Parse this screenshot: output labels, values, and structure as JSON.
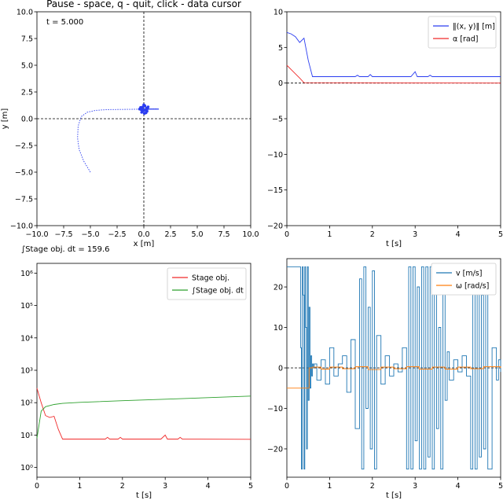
{
  "window": {
    "header": "Pause - space, q - quit, click - data cursor"
  },
  "colors": {
    "blue": "#2a3cf0",
    "red": "#f02a2a",
    "green": "#2ca02c",
    "tab_blue": "#1f77b4",
    "tab_orange": "#ff7f0e",
    "axis": "#000000"
  },
  "chart_data": [
    {
      "id": "trajectory",
      "type": "scatter",
      "annotation": "t = 5.000",
      "xlabel": "x [m]",
      "ylabel": "y [m]",
      "xlim": [
        -10,
        10
      ],
      "ylim": [
        -10,
        10
      ],
      "xticks": [
        "−10.0",
        "−7.5",
        "−5.0",
        "−2.5",
        "0.0",
        "2.5",
        "5.0",
        "7.5",
        "10.0"
      ],
      "yticks": [
        "−10.0",
        "−7.5",
        "−5.0",
        "−2.5",
        "0.0",
        "2.5",
        "5.0",
        "7.5",
        "10.0"
      ],
      "crosshair": {
        "x": 0,
        "y": 0
      },
      "series": [
        {
          "style": "dotted",
          "points": [
            [
              -5,
              -5
            ],
            [
              -5.6,
              -4
            ],
            [
              -6.05,
              -2.9
            ],
            [
              -6.2,
              -1.8
            ],
            [
              -6.15,
              -0.7
            ],
            [
              -5.85,
              0.2
            ],
            [
              -5.3,
              0.6
            ],
            [
              -4.5,
              0.78
            ],
            [
              -3.4,
              0.85
            ],
            [
              -2.2,
              0.87
            ],
            [
              -1,
              0.88
            ],
            [
              0.3,
              0.9
            ],
            [
              1.2,
              0.92
            ]
          ]
        },
        {
          "style": "cluster",
          "points": [
            [
              -0.4,
              0.9
            ],
            [
              -0.2,
              0.6
            ],
            [
              0.1,
              1.2
            ],
            [
              0.3,
              0.7
            ],
            [
              -0.1,
              1.1
            ],
            [
              0.25,
              1.0
            ],
            [
              0.05,
              0.5
            ],
            [
              -0.3,
              1.05
            ],
            [
              0.15,
              0.8
            ],
            [
              0.35,
              0.95
            ],
            [
              -0.05,
              0.75
            ],
            [
              0.0,
              1.3
            ],
            [
              -0.25,
              0.85
            ],
            [
              0.2,
              0.55
            ],
            [
              0.4,
              1.1
            ],
            [
              -0.15,
              0.95
            ]
          ]
        }
      ]
    },
    {
      "id": "norm-alpha",
      "type": "line",
      "xlabel": "t [s]",
      "ylabel": "",
      "xlim": [
        0,
        5
      ],
      "ylim": [
        -20,
        10
      ],
      "xticks": [
        "0",
        "1",
        "2",
        "3",
        "4",
        "5"
      ],
      "yticks": [
        "−20",
        "−15",
        "−10",
        "−5",
        "0",
        "5",
        "10"
      ],
      "zero_line": true,
      "legend_placement": "top-right",
      "series": [
        {
          "name": "‖(x, y)‖ [m]",
          "x": [
            0,
            0.1,
            0.2,
            0.3,
            0.4,
            0.5,
            0.6,
            1.6,
            1.65,
            1.7,
            1.9,
            1.95,
            2.0,
            2.9,
            3.0,
            3.05,
            3.3,
            3.35,
            3.4,
            5.0
          ],
          "y": [
            7.1,
            6.9,
            6.5,
            5.7,
            6.3,
            3.2,
            0.9,
            0.9,
            1.1,
            0.9,
            0.9,
            1.2,
            0.9,
            0.9,
            1.6,
            0.9,
            0.9,
            1.1,
            0.9,
            0.9
          ]
        },
        {
          "name": "α [rad]",
          "x": [
            0,
            0.1,
            0.2,
            0.3,
            0.4,
            5.0
          ],
          "y": [
            2.5,
            1.9,
            1.3,
            0.7,
            0.05,
            0.0
          ]
        }
      ]
    },
    {
      "id": "stage-cost",
      "type": "line",
      "annotation": "∫Stage obj. dt = 159.6",
      "xlabel": "t [s]",
      "ylabel": "",
      "log_scale": true,
      "xlim": [
        0,
        5
      ],
      "ylim": [
        0.5,
        2000000
      ],
      "xticks": [
        "0",
        "1",
        "2",
        "3",
        "4",
        "5"
      ],
      "yticks": [
        "10⁰",
        "10¹",
        "10²",
        "10³",
        "10⁴",
        "10⁵",
        "10⁶"
      ],
      "legend_placement": "top-right",
      "series": [
        {
          "name": "Stage obj.",
          "x": [
            0,
            0.1,
            0.2,
            0.3,
            0.4,
            0.5,
            0.6,
            1.6,
            1.65,
            1.7,
            1.9,
            1.95,
            2.0,
            2.9,
            3.0,
            3.05,
            3.3,
            3.35,
            3.4,
            5.0
          ],
          "y": [
            280,
            100,
            40,
            35,
            38,
            15,
            7.5,
            7.5,
            8.5,
            7.5,
            7.5,
            8.5,
            7.5,
            7.5,
            10,
            7.5,
            7.5,
            8.5,
            7.5,
            7.4
          ]
        },
        {
          "name": "∫Stage obj. dt",
          "x": [
            0,
            0.1,
            0.2,
            0.4,
            0.6,
            1,
            2,
            3,
            4,
            5
          ],
          "y": [
            8,
            55,
            75,
            88,
            95,
            102,
            115,
            128,
            143,
            159.6
          ]
        }
      ]
    },
    {
      "id": "controls",
      "type": "line",
      "xlabel": "t [s]",
      "ylabel": "",
      "xlim": [
        0,
        5
      ],
      "ylim": [
        -27,
        27
      ],
      "xticks": [
        "0",
        "1",
        "2",
        "3",
        "4",
        "5"
      ],
      "yticks": [
        "−20",
        "−10",
        "0",
        "10",
        "20"
      ],
      "zero_line": true,
      "legend_placement": "top-right",
      "series": [
        {
          "name": "v [m/s]",
          "x": [
            0,
            0.05,
            0.3,
            0.32,
            0.34,
            0.36,
            0.38,
            0.4,
            0.42,
            0.44,
            0.46,
            0.48,
            0.5,
            0.52,
            0.54,
            0.56,
            0.58,
            0.6,
            0.62,
            0.64,
            0.7,
            0.8,
            0.9,
            1.0,
            1.1,
            1.2,
            1.3,
            1.4,
            1.5,
            1.6,
            1.7,
            1.75,
            1.8,
            1.85,
            1.9,
            1.95,
            2.0,
            2.05,
            2.1,
            2.2,
            2.3,
            2.4,
            2.5,
            2.6,
            2.7,
            2.8,
            2.85,
            2.9,
            2.95,
            3.0,
            3.05,
            3.1,
            3.15,
            3.2,
            3.25,
            3.3,
            3.35,
            3.4,
            3.45,
            3.5,
            3.55,
            3.6,
            3.65,
            3.7,
            3.75,
            3.8,
            3.9,
            4.0,
            4.1,
            4.2,
            4.3,
            4.35,
            4.4,
            4.45,
            4.5,
            4.55,
            4.6,
            4.65,
            4.7,
            4.8,
            4.9,
            4.95,
            5.0
          ],
          "y": [
            25,
            25,
            25,
            5,
            -25,
            25,
            18,
            -25,
            25,
            10,
            -20,
            25,
            -8,
            15,
            -5,
            3,
            -2,
            1,
            0,
            1,
            -3,
            2,
            -4,
            5,
            -2,
            1,
            3,
            -6,
            7,
            -15,
            22,
            -25,
            25,
            -10,
            15,
            -20,
            24,
            -25,
            8,
            -4,
            3,
            -2,
            1,
            -1,
            5,
            -25,
            25,
            -25,
            25,
            -18,
            20,
            -25,
            25,
            -25,
            25,
            -22,
            25,
            -25,
            22,
            -15,
            10,
            -25,
            25,
            -8,
            4,
            -3,
            2,
            -1,
            3,
            -2,
            -25,
            25,
            -25,
            25,
            -22,
            18,
            -20,
            25,
            -25,
            5,
            -3,
            2,
            -1
          ]
        },
        {
          "name": "ω [rad/s]",
          "x": [
            0,
            0.5,
            0.52,
            0.6,
            0.8,
            1.0,
            1.3,
            1.6,
            1.9,
            2.2,
            2.5,
            2.8,
            3.1,
            3.4,
            3.7,
            4.0,
            4.3,
            4.6,
            5.0
          ],
          "y": [
            -5,
            -5,
            0,
            0.2,
            -0.3,
            0.2,
            -0.2,
            0.3,
            -0.4,
            0.2,
            -0.2,
            0.3,
            -0.3,
            0.2,
            -0.3,
            0.2,
            -0.2,
            0.3,
            0
          ]
        }
      ]
    }
  ]
}
